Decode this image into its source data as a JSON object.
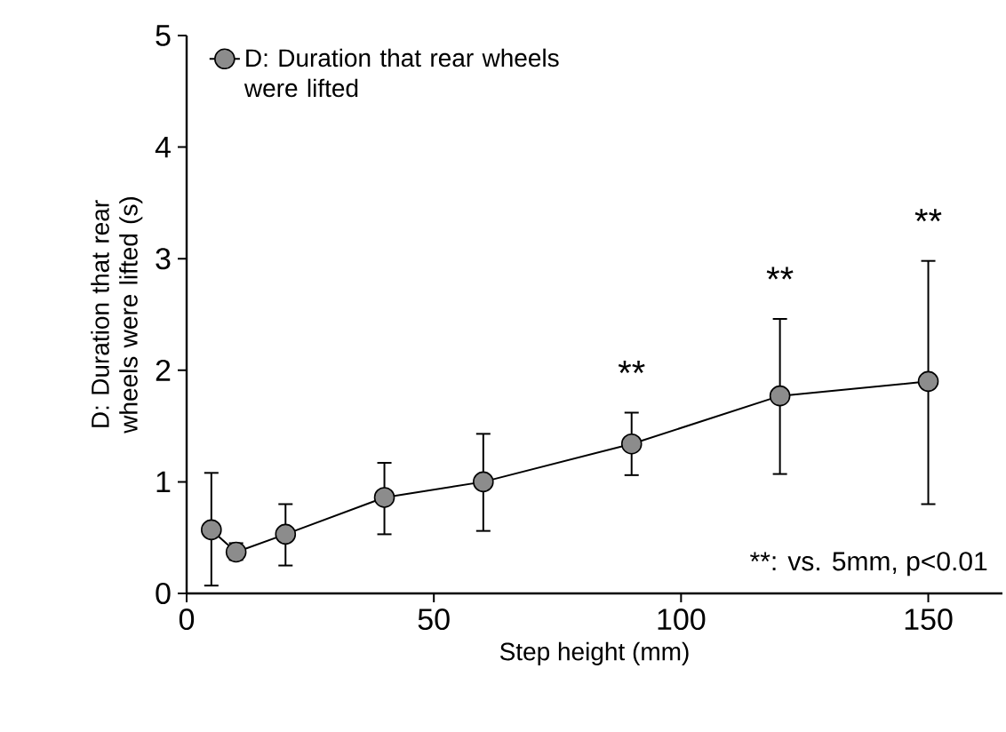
{
  "chart_data": {
    "type": "line",
    "xlabel": "Step height (mm)",
    "ylabel": "D: Duration that rear wheels were lifted (s)",
    "x": [
      5,
      10,
      20,
      40,
      60,
      90,
      120,
      150
    ],
    "series": [
      {
        "name": "D: Duration that rear wheels were lifted",
        "color": "#8c8c8c",
        "values": [
          0.57,
          0.37,
          0.53,
          0.86,
          1.0,
          1.34,
          1.77,
          1.9
        ],
        "errors": [
          [
            0.07,
            1.08
          ],
          [
            0.3,
            0.45
          ],
          [
            0.25,
            0.8
          ],
          [
            0.53,
            1.17
          ],
          [
            0.56,
            1.43
          ],
          [
            1.06,
            1.62
          ],
          [
            1.07,
            2.46
          ],
          [
            0.8,
            2.98
          ]
        ]
      }
    ],
    "xlim": [
      0,
      165
    ],
    "xticks": [
      0,
      50,
      100,
      150
    ],
    "ylim": [
      0,
      5
    ],
    "yticks": [
      0,
      1,
      2,
      3,
      4,
      5
    ],
    "annotations": [
      {
        "text": "**",
        "x": 90,
        "y": 1.62
      },
      {
        "text": "**",
        "x": 120,
        "y": 2.46
      },
      {
        "text": "**",
        "x": 150,
        "y": 2.98
      },
      "**: vs. 5mm, p<0.01"
    ],
    "legend": "top left",
    "marker": "circle",
    "line_style": "solid",
    "grid": false
  }
}
